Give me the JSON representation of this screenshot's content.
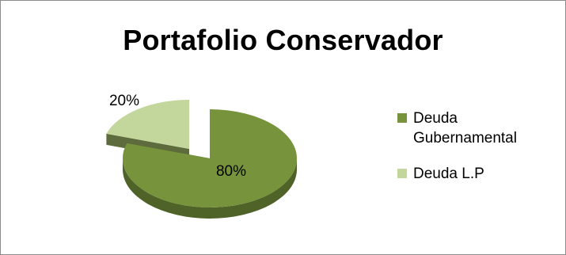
{
  "chart_data": {
    "type": "pie",
    "title": "Portafolio Conservador",
    "slices": [
      {
        "label": "Deuda Gubernamental",
        "value": 80,
        "display": "80%",
        "color": "#77933c",
        "side_color": "#4f6228"
      },
      {
        "label": "Deuda  L.P",
        "value": 20,
        "display": "20%",
        "color": "#c3d69b",
        "side_color": "#5e6b3c"
      }
    ],
    "legend_position": "right",
    "three_d": true,
    "exploded": "Deuda  L.P"
  },
  "legend": {
    "items": [
      {
        "line1": "Deuda",
        "line2": "Gubernamental"
      },
      {
        "line1": "Deuda  L.P",
        "line2": ""
      }
    ]
  }
}
